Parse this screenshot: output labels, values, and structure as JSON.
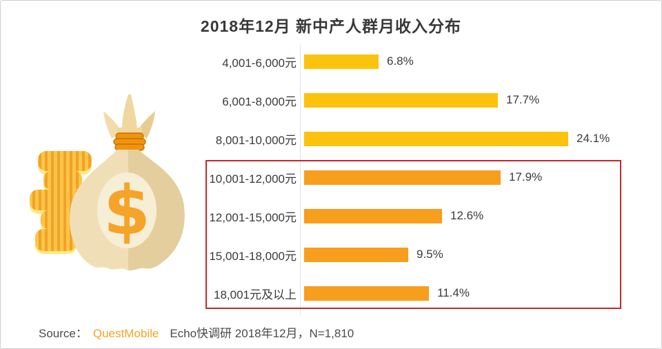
{
  "page": {
    "background": "#ffffff",
    "border_color": "#cfcfcf"
  },
  "chart_data": {
    "type": "bar",
    "orientation": "horizontal",
    "title": "2018年12月 新中产人群月收入分布",
    "categories": [
      "4,001-6,000元",
      "6,001-8,000元",
      "8,001-10,000元",
      "10,001-12,000元",
      "12,001-15,000元",
      "15,001-18,000元",
      "18,001元及以上"
    ],
    "values": [
      6.8,
      17.7,
      24.1,
      17.9,
      12.6,
      9.5,
      11.4
    ],
    "value_labels": [
      "6.8%",
      "17.7%",
      "24.1%",
      "17.9%",
      "12.6%",
      "9.5%",
      "11.4%"
    ],
    "unit": "%",
    "xlim": [
      0,
      24.1
    ],
    "grid": false,
    "legend": "none",
    "colors": {
      "yellow": "#fbc30d",
      "orange": "#f79e1c"
    },
    "bar_color_keys": [
      "yellow",
      "yellow",
      "yellow",
      "orange",
      "orange",
      "orange",
      "orange"
    ],
    "highlight": {
      "description": "red outline around income groups 10,001元 and above",
      "start_index": 3,
      "end_index": 6,
      "border_color": "#c9252b"
    }
  },
  "source": {
    "prefix": "Source：",
    "brand": "QuestMobile",
    "suffix": "Echo快调研 2018年12月，N=1,810"
  },
  "illustration": {
    "name": "money-bag-with-coin-stack",
    "dollar_symbol": "$",
    "colors": {
      "bag_light": "#f0dfb6",
      "bag_dark": "#e5ce9d",
      "bag_circle": "#f7eed6",
      "crown_left": "#f2dca9",
      "crown_center": "#efd79e",
      "crown_right": "#e8cc92",
      "tie": "#f0940e",
      "tie_outline": "#c27201",
      "dollar": "#f5a329",
      "coin": "#ffc544",
      "coin_stripe": "#f0a22c",
      "coin_edge": "#ffe97e"
    }
  }
}
